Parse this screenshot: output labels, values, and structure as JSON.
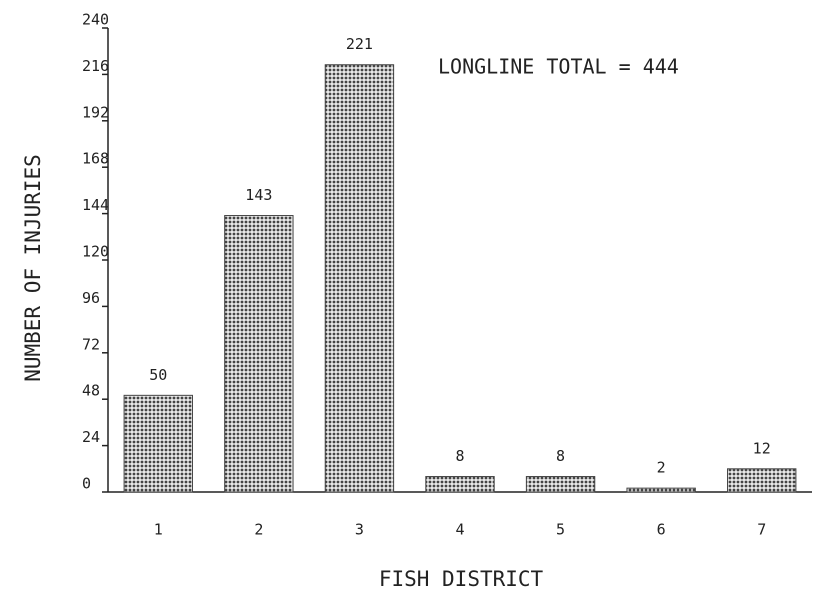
{
  "chart_data": {
    "type": "bar",
    "annotation": "LONGLINE TOTAL = 444",
    "x_label": "FISH DISTRICT",
    "y_label": "NUMBER OF INJURIES",
    "categories": [
      "1",
      "2",
      "3",
      "4",
      "5",
      "6",
      "7"
    ],
    "values": [
      50,
      143,
      221,
      8,
      8,
      2,
      12
    ],
    "color": "#444444",
    "ylim": [
      0,
      240
    ],
    "yticks": [
      0,
      24,
      48,
      72,
      96,
      120,
      144,
      168,
      192,
      216,
      240
    ],
    "grid": false
  }
}
